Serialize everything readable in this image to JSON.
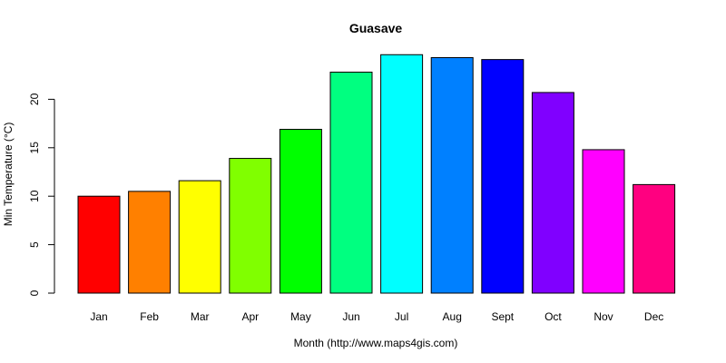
{
  "chart_data": {
    "type": "bar",
    "title": "Guasave",
    "xlabel": "Month (http://www.maps4gis.com)",
    "ylabel": "Min Temperature (°C)",
    "categories": [
      "Jan",
      "Feb",
      "Mar",
      "Apr",
      "May",
      "Jun",
      "Jul",
      "Aug",
      "Sept",
      "Oct",
      "Nov",
      "Dec"
    ],
    "values": [
      10.0,
      10.5,
      11.6,
      13.9,
      16.9,
      22.8,
      24.6,
      24.3,
      24.1,
      20.7,
      14.8,
      11.2
    ],
    "colors": [
      "#FF0000",
      "#FF8000",
      "#FFFF00",
      "#80FF00",
      "#00FF00",
      "#00FF80",
      "#00FFFF",
      "#0080FF",
      "#0000FF",
      "#8000FF",
      "#FF00FF",
      "#FF0080"
    ],
    "ylim": [
      0,
      25
    ],
    "yticks": [
      0,
      5,
      10,
      15,
      20
    ],
    "grid": false,
    "legend": "none"
  }
}
